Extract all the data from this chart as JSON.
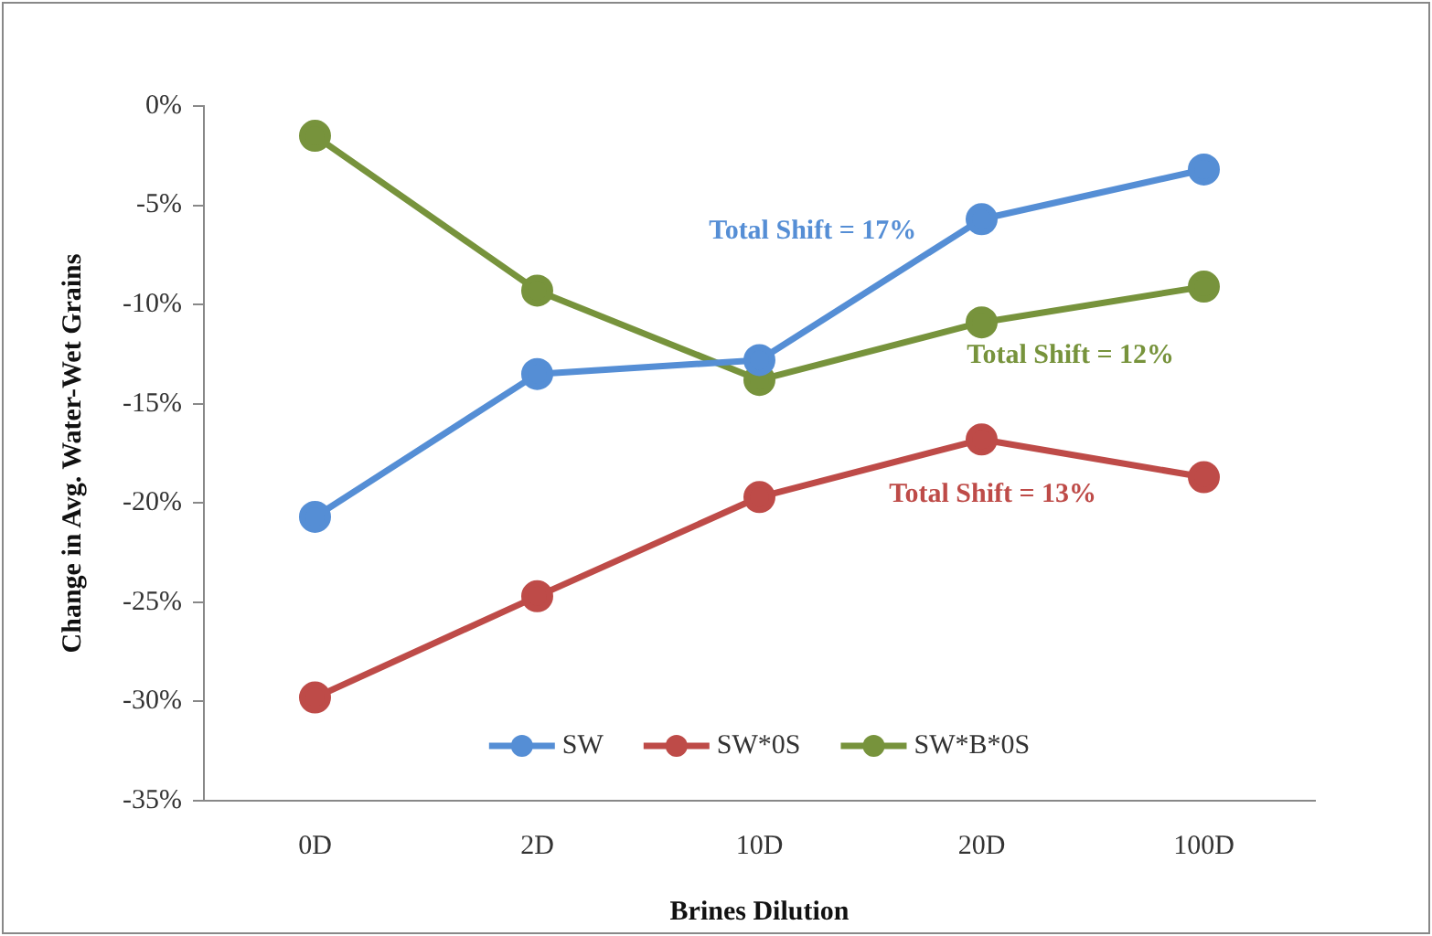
{
  "chart_data": {
    "type": "line",
    "xlabel": "Brines Dilution",
    "ylabel": "Change in Avg. Water-Wet Grains",
    "categories": [
      "0D",
      "2D",
      "10D",
      "20D",
      "100D"
    ],
    "series": [
      {
        "name": "SW",
        "color": "#558ed5",
        "values": [
          -20.7,
          -13.5,
          -12.8,
          -5.7,
          -3.2
        ]
      },
      {
        "name": "SW*0S",
        "color": "#be4b48",
        "values": [
          -29.8,
          -24.7,
          -19.7,
          -16.8,
          -18.7
        ]
      },
      {
        "name": "SW*B*0S",
        "color": "#77933c",
        "values": [
          -1.5,
          -9.3,
          -13.8,
          -10.9,
          -9.1
        ]
      }
    ],
    "annotations": [
      "Total Shift = 17%",
      "Total Shift = 13%",
      "Total Shift = 12%"
    ],
    "ylim": [
      -35,
      0
    ],
    "yticks": [
      {
        "value": 0,
        "label": "0%"
      },
      {
        "value": -5,
        "label": "-5%"
      },
      {
        "value": -10,
        "label": "-10%"
      },
      {
        "value": -15,
        "label": "-15%"
      },
      {
        "value": -20,
        "label": "-20%"
      },
      {
        "value": -25,
        "label": "-25%"
      },
      {
        "value": -30,
        "label": "-30%"
      },
      {
        "value": -35,
        "label": "-35%"
      }
    ],
    "grid": false,
    "legend": "bottom",
    "marker": "circle",
    "line_style": "solid"
  }
}
